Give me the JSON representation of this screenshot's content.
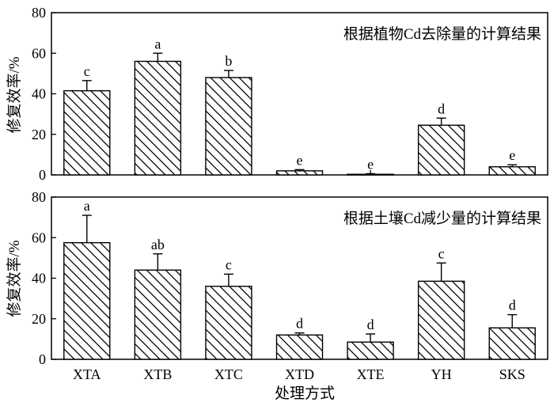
{
  "chart_data": [
    {
      "type": "bar",
      "title": "根据植物Cd去除量的计算结果",
      "ylabel": "修复效率/%",
      "xlabel": "",
      "ylim": [
        0,
        80
      ],
      "yticks": [
        0,
        20,
        40,
        60,
        80
      ],
      "categories": [
        "XTA",
        "XTB",
        "XTC",
        "XTD",
        "XTE",
        "YH",
        "SKS"
      ],
      "values": [
        41.5,
        56.0,
        48.0,
        2.0,
        0.3,
        24.5,
        4.0
      ],
      "errors": [
        5.0,
        4.0,
        3.5,
        0.6,
        0.3,
        3.5,
        1.0
      ],
      "significance": [
        "c",
        "a",
        "b",
        "e",
        "e",
        "d",
        "e"
      ],
      "show_category_labels": false
    },
    {
      "type": "bar",
      "title": "根据土壤Cd减少量的计算结果",
      "ylabel": "修复效率/%",
      "xlabel": "处理方式",
      "ylim": [
        0,
        80
      ],
      "yticks": [
        0,
        20,
        40,
        60,
        80
      ],
      "categories": [
        "XTA",
        "XTB",
        "XTC",
        "XTD",
        "XTE",
        "YH",
        "SKS"
      ],
      "values": [
        57.5,
        44.0,
        36.0,
        12.0,
        8.5,
        38.5,
        15.5
      ],
      "errors": [
        13.5,
        8.0,
        6.0,
        1.0,
        4.0,
        9.0,
        6.5
      ],
      "significance": [
        "a",
        "ab",
        "c",
        "d",
        "d",
        "c",
        "d"
      ],
      "show_category_labels": true
    }
  ]
}
